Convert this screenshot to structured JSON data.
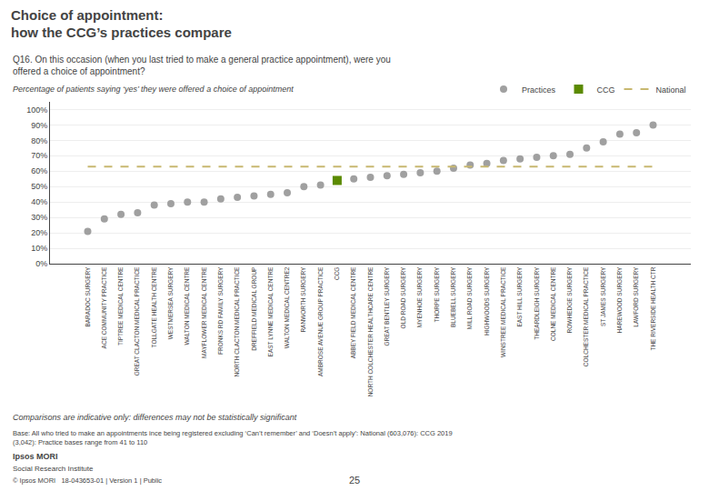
{
  "chart_data": {
    "type": "scatter",
    "title": "Choice of appointment:\nhow the CCG’s practices compare",
    "subtitle": "Percentage of patients saying ‘yes’ they were offered a choice of appointment",
    "annotations": [
      "Q16. On this occasion (when you last tried to make a general practice appointment), were you\noffered a choice of appointment?",
      "Comparisons are indicative only: differences may not be statistically significant",
      "Base: All who tried to make an appointments ince being registered excluding ‘Can’t remember’ and ‘Doesn’t apply’: National (603,076): CCG 2019\n(3,042): Practice bases range from 41 to 110",
      "Ipsos MORI",
      "Social Research Institute",
      "© Ipsos MORI   18-043653-01 | Version 1 | Public",
      "25"
    ],
    "categories": [
      "BARADOC SURGERY",
      "ACE COMMUNITY PRACTICE",
      "TIPTREE MEDICAL CENTRE",
      "GREAT CLACTON MEDICAL PRACTICE",
      "TOLLGATE HEALTH CENTRE",
      "WESTMERSEA SURGERY",
      "WALTON MEDICAL CENTRE",
      "MAYFLOWER MEDICAL CENTRE",
      "FRONKS RD FAMILY SURGERY",
      "NORTH CLACTON MEDICAL PRACTICE",
      "DREFFIELD MEDICAL GROUP",
      "EAST LYNNE MEDICAL CENTRE",
      "WALTON MEDICAL CENTRE2",
      "RANWORTH SURGERY",
      "AMBROSE AVENUE GROUP PRACTICE",
      "CCG",
      "ABBEY FIELD MEDICAL CENTRE",
      "NORTH COLCHESTER HEALTHCARE CENTRE",
      "GREAT BENTLEY SURGERY",
      "OLD ROAD SURGERY",
      "MYENHOE SURGERY",
      "THORPE SURGERY",
      "BLUEBELL SURGERY",
      "MILL ROAD SURGERY",
      "HIGHWOODS SURGERY",
      "WINSTREE MEDICAL PRACTICE",
      "EAST HILL SURGERY",
      "THEARDLEIGH SURGERY",
      "COLNE MEDICAL CENTRE",
      "ROWHEDGE SURGERY",
      "COLCHESTER MEDICAL PRACTICE",
      "ST JAMES SURGERY",
      "HAREWOOD SURGERY",
      "LAWFORD SURGERY",
      "THE RIVERSIDE HEALTH CTR"
    ],
    "series": [
      {
        "name": "Practices",
        "type": "scatter",
        "marker": "circle",
        "color": "#a0a0a0",
        "values": [
          21,
          29,
          32,
          33,
          38,
          39,
          40,
          40,
          42,
          43,
          44,
          45,
          46,
          50,
          51,
          null,
          55,
          56,
          57,
          58,
          59,
          60,
          62,
          64,
          65,
          67,
          68,
          69,
          70,
          71,
          75,
          79,
          84,
          85,
          90
        ]
      },
      {
        "name": "CCG",
        "type": "scatter",
        "marker": "square",
        "color": "#5b8a00",
        "values": [
          null,
          null,
          null,
          null,
          null,
          null,
          null,
          null,
          null,
          null,
          null,
          null,
          null,
          null,
          null,
          54,
          null,
          null,
          null,
          null,
          null,
          null,
          null,
          null,
          null,
          null,
          null,
          null,
          null,
          null,
          null,
          null,
          null,
          null,
          null
        ]
      },
      {
        "name": "National",
        "type": "line",
        "line_style": "dash",
        "color": "#c8b870",
        "values": [
          63,
          63,
          63,
          63,
          63,
          63,
          63,
          63,
          63,
          63,
          63,
          63,
          63,
          63,
          63,
          63,
          63,
          63,
          63,
          63,
          63,
          63,
          63,
          63,
          63,
          63,
          63,
          63,
          63,
          63,
          63,
          63,
          63,
          63,
          63
        ]
      }
    ],
    "ylim": [
      0,
      105
    ],
    "yticks": [
      {
        "value": 0,
        "label": "0%"
      },
      {
        "value": 10,
        "label": "10%"
      },
      {
        "value": 20,
        "label": "20%"
      },
      {
        "value": 30,
        "label": "30%"
      },
      {
        "value": 40,
        "label": "40%"
      },
      {
        "value": 50,
        "label": "50%"
      },
      {
        "value": 60,
        "label": "60%"
      },
      {
        "value": 70,
        "label": "70%"
      },
      {
        "value": 80,
        "label": "80%"
      },
      {
        "value": 90,
        "label": "90%"
      },
      {
        "value": 100,
        "label": "100%"
      }
    ],
    "grid": true,
    "legend": "top right"
  }
}
